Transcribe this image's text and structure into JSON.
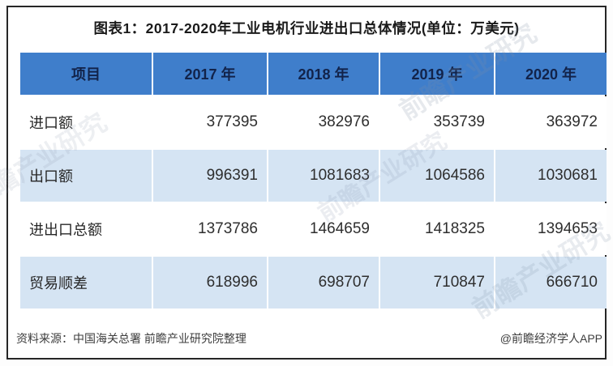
{
  "title": "图表1：2017-2020年工业电机行业进出口总体情况(单位：万美元)",
  "table": {
    "columns": [
      "项目",
      "2017 年",
      "2018 年",
      "2019 年",
      "2020 年"
    ],
    "rows": [
      {
        "label": "进口额",
        "values": [
          "377395",
          "382976",
          "353739",
          "363972"
        ]
      },
      {
        "label": "出口额",
        "values": [
          "996391",
          "1081683",
          "1064586",
          "1030681"
        ]
      },
      {
        "label": "进出口总额",
        "values": [
          "1373786",
          "1464659",
          "1418325",
          "1394653"
        ]
      },
      {
        "label": "贸易顺差",
        "values": [
          "618996",
          "698707",
          "710847",
          "666710"
        ]
      }
    ]
  },
  "footer": {
    "source": "资料来源：中国海关总署 前瞻产业研究院整理",
    "credit": "@前瞻经济学人APP"
  },
  "watermark": {
    "text": "前瞻产业研究"
  },
  "colors": {
    "header_bg": "#3f7ecb",
    "header_text": "#12234a",
    "row_alt_bg": "#d5e4f3",
    "row_bg": "#ffffff",
    "border": "#262626",
    "title_text": "#1a1a1a",
    "number_text": "#2e2e2e",
    "footer_text": "#3d3d3d"
  },
  "chart_data": {
    "type": "table",
    "title": "图表1：2017-2020年工业电机行业进出口总体情况(单位：万美元)",
    "unit": "万美元",
    "columns": [
      "项目",
      "2017年",
      "2018年",
      "2019年",
      "2020年"
    ],
    "categories": [
      "2017年",
      "2018年",
      "2019年",
      "2020年"
    ],
    "series": [
      {
        "name": "进口额",
        "values": [
          377395,
          382976,
          353739,
          363972
        ]
      },
      {
        "name": "出口额",
        "values": [
          996391,
          1081683,
          1064586,
          1030681
        ]
      },
      {
        "name": "进出口总额",
        "values": [
          1373786,
          1464659,
          1418325,
          1394653
        ]
      },
      {
        "name": "贸易顺差",
        "values": [
          618996,
          698707,
          710847,
          666710
        ]
      }
    ],
    "source": "资料来源：中国海关总署 前瞻产业研究院整理"
  }
}
